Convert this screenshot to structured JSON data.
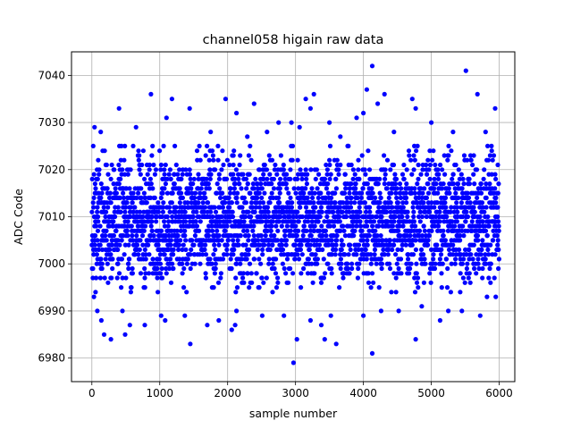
{
  "chart_data": {
    "type": "scatter",
    "title": "channel058 higain raw data",
    "xlabel": "sample number",
    "ylabel": "ADC Code",
    "xlim": [
      -300,
      6230
    ],
    "ylim": [
      6975,
      7045
    ],
    "xticks": [
      0,
      1000,
      2000,
      3000,
      4000,
      5000,
      6000
    ],
    "yticks": [
      6980,
      6990,
      7000,
      7010,
      7020,
      7030,
      7040
    ],
    "grid": true,
    "marker_color": "#0000ff",
    "n_samples": 6000,
    "typical_range": [
      6996,
      7023
    ],
    "series": [
      {
        "points": [
          [
            4130,
            7042
          ],
          [
            5510,
            7041
          ],
          [
            4050,
            7037
          ],
          [
            5680,
            7036
          ],
          [
            870,
            7036
          ],
          [
            3270,
            7036
          ],
          [
            4310,
            7036
          ],
          [
            400,
            7033
          ],
          [
            1440,
            7033
          ],
          [
            3220,
            7033
          ],
          [
            5940,
            7033
          ],
          [
            1180,
            7035
          ],
          [
            1970,
            7035
          ],
          [
            2390,
            7034
          ],
          [
            3150,
            7035
          ],
          [
            4720,
            7035
          ],
          [
            4210,
            7034
          ],
          [
            2130,
            7032
          ],
          [
            1100,
            7031
          ],
          [
            4000,
            7032
          ],
          [
            4770,
            7033
          ],
          [
            2940,
            7030
          ],
          [
            2750,
            7030
          ],
          [
            3500,
            7030
          ],
          [
            3900,
            7031
          ],
          [
            5000,
            7030
          ],
          [
            40,
            7029
          ],
          [
            130,
            7028
          ],
          [
            650,
            7029
          ],
          [
            1750,
            7028
          ],
          [
            2290,
            7027
          ],
          [
            2580,
            7028
          ],
          [
            3060,
            7029
          ],
          [
            3660,
            7027
          ],
          [
            4450,
            7028
          ],
          [
            5320,
            7028
          ],
          [
            5800,
            7028
          ],
          [
            30,
            6993
          ],
          [
            80,
            6990
          ],
          [
            140,
            6988
          ],
          [
            180,
            6985
          ],
          [
            280,
            6984
          ],
          [
            490,
            6985
          ],
          [
            560,
            6987
          ],
          [
            450,
            6990
          ],
          [
            780,
            6987
          ],
          [
            1080,
            6988
          ],
          [
            1020,
            6989
          ],
          [
            1450,
            6983
          ],
          [
            1370,
            6989
          ],
          [
            1700,
            6987
          ],
          [
            1870,
            6988
          ],
          [
            2060,
            6986
          ],
          [
            2110,
            6987
          ],
          [
            2130,
            6990
          ],
          [
            2510,
            6989
          ],
          [
            2830,
            6989
          ],
          [
            2970,
            6979
          ],
          [
            3020,
            6984
          ],
          [
            3220,
            6988
          ],
          [
            3380,
            6987
          ],
          [
            3430,
            6984
          ],
          [
            3600,
            6983
          ],
          [
            3520,
            6989
          ],
          [
            4000,
            6989
          ],
          [
            4130,
            6981
          ],
          [
            4260,
            6990
          ],
          [
            4520,
            6990
          ],
          [
            4770,
            6984
          ],
          [
            4860,
            6991
          ],
          [
            5130,
            6988
          ],
          [
            5250,
            6990
          ],
          [
            5450,
            6990
          ],
          [
            5720,
            6989
          ],
          [
            5820,
            6993
          ],
          [
            5950,
            6993
          ]
        ]
      }
    ]
  }
}
